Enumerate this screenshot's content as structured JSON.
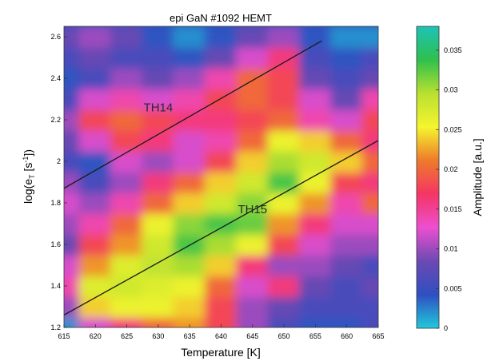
{
  "chart_data": {
    "type": "heatmap",
    "title": "epi GaN #1092 HEMT",
    "xlabel": "Temperature  [K]",
    "ylabel": "log(e",
    "ylabel_sub": "T",
    "ylabel_unit_open": "  [s",
    "ylabel_unit_sup": "-1",
    "ylabel_unit_close": "])",
    "xlim": [
      615,
      665
    ],
    "ylim": [
      1.2,
      2.65
    ],
    "x_ticks": [
      615,
      620,
      625,
      630,
      635,
      640,
      645,
      650,
      655,
      660,
      665
    ],
    "y_ticks": [
      "1.2",
      "1.4",
      "1.6",
      "1.8",
      "2",
      "2.2",
      "2.4",
      "2.6"
    ],
    "y_tick_values": [
      1.2,
      1.4,
      1.6,
      1.8,
      2.0,
      2.2,
      2.4,
      2.6
    ],
    "colorbar": {
      "label": "Amplitude [a.u.]",
      "range": [
        0,
        0.038
      ],
      "ticks": [
        "0",
        "0.005",
        "0.01",
        "0.015",
        "0.02",
        "0.025",
        "0.03",
        "0.035"
      ],
      "tick_values": [
        0,
        0.005,
        0.01,
        0.015,
        0.02,
        0.025,
        0.03,
        0.035
      ],
      "colormap": [
        "#21c9dc",
        "#2f4fc0",
        "#6c49b3",
        "#ec4fd0",
        "#f53565",
        "#ee7a2a",
        "#f5f52e",
        "#b9e030",
        "#2fc04c",
        "#1dc2b8"
      ]
    },
    "grid": {
      "x": [
        615,
        620,
        625,
        630,
        635,
        640,
        645,
        650,
        655,
        660,
        665
      ],
      "y": [
        1.2,
        1.3,
        1.4,
        1.5,
        1.6,
        1.7,
        1.8,
        1.9,
        2.0,
        2.1,
        2.2,
        2.3,
        2.4,
        2.5,
        2.6
      ],
      "z": [
        [
          0.002,
          0.012,
          0.016,
          0.02,
          0.022,
          0.018,
          0.01,
          0.006,
          0.004,
          0.004,
          0.006
        ],
        [
          0.01,
          0.024,
          0.026,
          0.026,
          0.024,
          0.018,
          0.01,
          0.008,
          0.006,
          0.006,
          0.006
        ],
        [
          0.014,
          0.027,
          0.028,
          0.027,
          0.026,
          0.02,
          0.012,
          0.016,
          0.008,
          0.006,
          0.008
        ],
        [
          0.012,
          0.022,
          0.027,
          0.029,
          0.03,
          0.024,
          0.016,
          0.01,
          0.01,
          0.008,
          0.006
        ],
        [
          0.008,
          0.018,
          0.022,
          0.028,
          0.033,
          0.03,
          0.026,
          0.018,
          0.012,
          0.01,
          0.01
        ],
        [
          0.01,
          0.014,
          0.02,
          0.026,
          0.031,
          0.033,
          0.032,
          0.022,
          0.016,
          0.012,
          0.012
        ],
        [
          0.012,
          0.01,
          0.014,
          0.02,
          0.024,
          0.028,
          0.031,
          0.026,
          0.022,
          0.014,
          0.02
        ],
        [
          0.01,
          0.006,
          0.01,
          0.016,
          0.02,
          0.024,
          0.028,
          0.033,
          0.026,
          0.018,
          0.016
        ],
        [
          0.006,
          0.004,
          0.012,
          0.01,
          0.012,
          0.018,
          0.024,
          0.03,
          0.028,
          0.024,
          0.02
        ],
        [
          0.008,
          0.012,
          0.018,
          0.016,
          0.012,
          0.014,
          0.02,
          0.026,
          0.024,
          0.02,
          0.016
        ],
        [
          0.01,
          0.018,
          0.02,
          0.018,
          0.016,
          0.016,
          0.018,
          0.02,
          0.014,
          0.012,
          0.018
        ],
        [
          0.006,
          0.012,
          0.014,
          0.012,
          0.014,
          0.018,
          0.02,
          0.018,
          0.012,
          0.008,
          0.014
        ],
        [
          0.004,
          0.006,
          0.01,
          0.008,
          0.01,
          0.014,
          0.02,
          0.018,
          0.008,
          0.006,
          0.008
        ],
        [
          0.006,
          0.008,
          0.006,
          0.006,
          0.004,
          0.008,
          0.012,
          0.016,
          0.006,
          0.004,
          0.006
        ],
        [
          0.008,
          0.01,
          0.008,
          0.004,
          0.002,
          0.004,
          0.008,
          0.01,
          0.004,
          0.002,
          0.002
        ]
      ]
    },
    "annotations": [
      {
        "text": "TH14",
        "x": 630,
        "y": 2.24
      },
      {
        "text": "TH15",
        "x": 645,
        "y": 1.75
      }
    ],
    "lines": [
      {
        "name": "TH14",
        "x": [
          615,
          656
        ],
        "y": [
          1.87,
          2.58
        ]
      },
      {
        "name": "TH15",
        "x": [
          615,
          665
        ],
        "y": [
          1.26,
          2.1
        ]
      }
    ]
  }
}
